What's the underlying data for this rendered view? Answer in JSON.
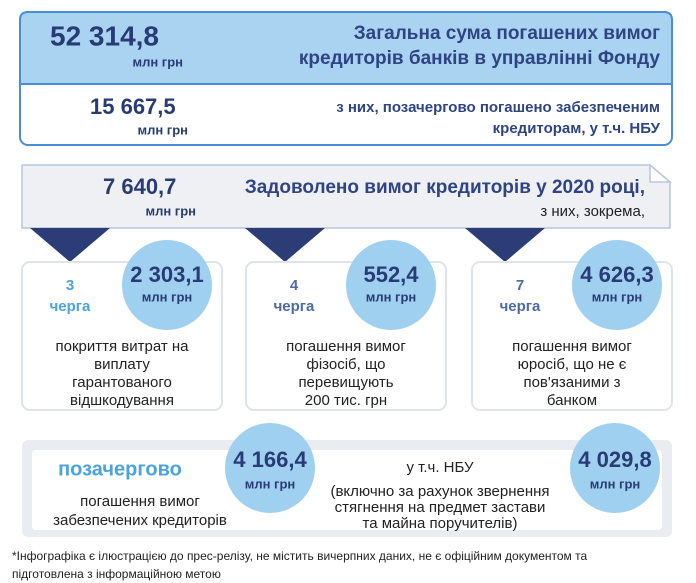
{
  "total": {
    "value": "52 314,8",
    "unit": "млн грн",
    "label": [
      "Загальна сума погашених вимог",
      "кредиторів банків в управлінні Фонду"
    ]
  },
  "priority": {
    "value": "15 667,5",
    "unit": "млн грн",
    "label": [
      "з них, позачергово погашено забезпеченим",
      "кредиторам, у т.ч. НБУ"
    ]
  },
  "year": {
    "value": "7 640,7",
    "unit": "млн грн",
    "label": [
      "Задоволено вимог кредиторів у 2020 році,",
      "з них, зокрема,"
    ]
  },
  "cards": [
    {
      "queue": "3",
      "queue_label": "черга",
      "value": "2 303,1",
      "unit": "млн грн",
      "description": [
        "покриття витрат на",
        "виплату",
        "гарантованого",
        "відшкодування"
      ]
    },
    {
      "queue": "4",
      "queue_label": "черга",
      "value": "552,4",
      "unit": "млн грн",
      "description": [
        "погашення вимог",
        "фізосіб, що",
        "перевищують",
        "200 тис. грн"
      ]
    },
    {
      "queue": "7",
      "queue_label": "черга",
      "value": "4 626,3",
      "unit": "млн грн",
      "description": [
        "погашення вимог",
        "юросіб, що не є",
        "пов'язаними з",
        "банком"
      ]
    }
  ],
  "extra": {
    "title": "позачергово",
    "value": "4 166,4",
    "unit": "млн грн",
    "description": [
      "погашення вимог",
      "забезпечених кредиторів"
    ]
  },
  "nbu": {
    "title": "у т.ч. НБУ",
    "value": "4 029,8",
    "unit": "млн грн",
    "description": [
      "(включно за рахунок звернення",
      "стягнення  на предмет застави",
      "та майна поручителів)"
    ]
  },
  "footnote": [
    "*Інфографіка є ілюстрацією до прес-релізу, не містить вичерпних даних, не є офіційним документом та",
    "підготовлена з інформаційною метою"
  ]
}
